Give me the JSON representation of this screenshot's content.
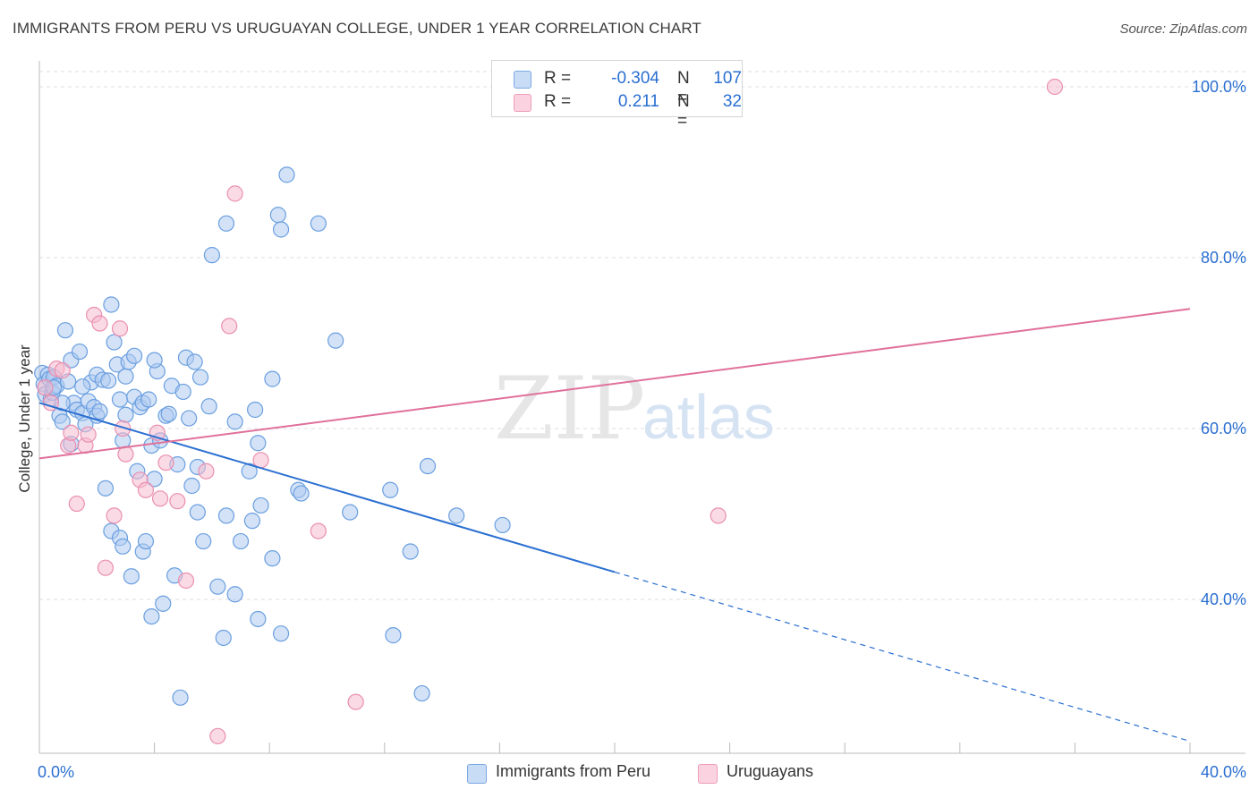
{
  "header": {
    "title": "IMMIGRANTS FROM PERU VS URUGUAYAN COLLEGE, UNDER 1 YEAR CORRELATION CHART",
    "source": "Source: ZipAtlas.com"
  },
  "watermark": {
    "zip": "ZIP",
    "atlas": "atlas"
  },
  "legend_top": {
    "rows": [
      {
        "r_label": "R =",
        "r_value": "-0.304",
        "n_label": "N =",
        "n_value": "107",
        "color": "#aecbf0"
      },
      {
        "r_label": "R =",
        "r_value": "0.211",
        "n_label": "N =",
        "n_value": "32",
        "color": "#f5bcd0"
      }
    ]
  },
  "colors": {
    "blue_fill": "#aecbf0",
    "blue_stroke": "#6a9fe0",
    "blue_line": "#2a6fd1",
    "pink_fill": "#f5bcd0",
    "pink_stroke": "#ea8fb0",
    "pink_line": "#e0709a",
    "tick_label": "#2a6fd1",
    "grid": "#dddddd"
  },
  "chart_data": {
    "type": "scatter",
    "title": "IMMIGRANTS FROM PERU VS URUGUAYAN COLLEGE, UNDER 1 YEAR CORRELATION CHART",
    "xlabel": "",
    "ylabel": "College, Under 1 year",
    "xlim": [
      0,
      40
    ],
    "ylim": [
      20,
      102
    ],
    "x_tick_labels": [
      "0.0%",
      "40.0%"
    ],
    "y_tick_labels": [
      "40.0%",
      "60.0%",
      "80.0%",
      "100.0%"
    ],
    "y_ticks": [
      40,
      60,
      80,
      100
    ],
    "grid": true,
    "legend_position": "top-center",
    "series": [
      {
        "name": "Immigrants from Peru",
        "r": -0.304,
        "n": 107,
        "trend": {
          "x0": 0,
          "y0": 63.0,
          "x1": 20,
          "y1": 43.2,
          "dashed_to_x": 40,
          "dashed_to_y": 23.4
        },
        "points": [
          [
            0.1,
            66.5
          ],
          [
            0.15,
            65.2
          ],
          [
            0.2,
            64.0
          ],
          [
            0.3,
            66.3
          ],
          [
            0.35,
            65.8
          ],
          [
            0.4,
            63.5
          ],
          [
            0.45,
            64.2
          ],
          [
            0.5,
            66.0
          ],
          [
            0.6,
            65.0
          ],
          [
            0.7,
            61.5
          ],
          [
            0.8,
            60.8
          ],
          [
            0.9,
            71.5
          ],
          [
            1.0,
            65.5
          ],
          [
            1.1,
            68.0
          ],
          [
            1.1,
            58.2
          ],
          [
            1.2,
            63.0
          ],
          [
            1.3,
            62.2
          ],
          [
            1.4,
            69.0
          ],
          [
            1.5,
            61.8
          ],
          [
            1.6,
            60.5
          ],
          [
            1.7,
            63.2
          ],
          [
            1.8,
            65.4
          ],
          [
            1.9,
            62.5
          ],
          [
            2.0,
            66.3
          ],
          [
            2.0,
            61.5
          ],
          [
            2.1,
            62.0
          ],
          [
            2.2,
            65.7
          ],
          [
            2.3,
            53.0
          ],
          [
            2.4,
            65.6
          ],
          [
            2.5,
            48.0
          ],
          [
            2.5,
            74.5
          ],
          [
            2.6,
            70.1
          ],
          [
            2.7,
            67.5
          ],
          [
            2.8,
            47.2
          ],
          [
            2.8,
            63.4
          ],
          [
            2.9,
            46.2
          ],
          [
            3.0,
            66.1
          ],
          [
            3.0,
            61.6
          ],
          [
            3.1,
            67.8
          ],
          [
            3.2,
            42.7
          ],
          [
            3.3,
            63.7
          ],
          [
            3.3,
            68.5
          ],
          [
            3.4,
            55.0
          ],
          [
            3.5,
            62.5
          ],
          [
            3.6,
            45.6
          ],
          [
            3.6,
            63.0
          ],
          [
            3.7,
            46.8
          ],
          [
            3.8,
            63.4
          ],
          [
            3.9,
            38.0
          ],
          [
            3.9,
            58.0
          ],
          [
            4.0,
            54.1
          ],
          [
            4.1,
            66.7
          ],
          [
            4.2,
            58.6
          ],
          [
            4.3,
            39.5
          ],
          [
            4.4,
            61.5
          ],
          [
            4.5,
            61.7
          ],
          [
            4.6,
            65.0
          ],
          [
            4.7,
            42.8
          ],
          [
            4.8,
            55.8
          ],
          [
            4.9,
            28.5
          ],
          [
            5.0,
            64.3
          ],
          [
            5.1,
            68.3
          ],
          [
            5.2,
            61.2
          ],
          [
            5.3,
            53.3
          ],
          [
            5.4,
            67.8
          ],
          [
            5.5,
            55.5
          ],
          [
            5.5,
            50.2
          ],
          [
            5.6,
            66.0
          ],
          [
            5.7,
            46.8
          ],
          [
            5.9,
            62.6
          ],
          [
            6.0,
            80.3
          ],
          [
            6.2,
            41.5
          ],
          [
            6.4,
            35.5
          ],
          [
            6.5,
            84.0
          ],
          [
            6.5,
            49.8
          ],
          [
            6.8,
            60.8
          ],
          [
            6.8,
            40.6
          ],
          [
            7.0,
            46.8
          ],
          [
            7.3,
            55.0
          ],
          [
            7.4,
            49.2
          ],
          [
            7.5,
            62.2
          ],
          [
            7.6,
            58.3
          ],
          [
            7.6,
            37.7
          ],
          [
            7.7,
            51.0
          ],
          [
            8.1,
            44.8
          ],
          [
            8.1,
            65.8
          ],
          [
            8.3,
            85.0
          ],
          [
            8.4,
            83.3
          ],
          [
            8.4,
            36.0
          ],
          [
            8.6,
            89.7
          ],
          [
            9.0,
            52.8
          ],
          [
            9.1,
            52.4
          ],
          [
            9.7,
            84.0
          ],
          [
            10.3,
            70.3
          ],
          [
            10.8,
            50.2
          ],
          [
            12.2,
            52.8
          ],
          [
            12.3,
            35.8
          ],
          [
            12.9,
            45.6
          ],
          [
            13.3,
            29.0
          ],
          [
            13.5,
            55.6
          ],
          [
            14.5,
            49.8
          ],
          [
            16.1,
            48.7
          ],
          [
            0.5,
            64.8
          ],
          [
            0.8,
            63.0
          ],
          [
            1.5,
            64.9
          ],
          [
            2.9,
            58.6
          ],
          [
            4.0,
            68.0
          ]
        ]
      },
      {
        "name": "Uruguayans",
        "r": 0.211,
        "n": 32,
        "trend": {
          "x0": 0,
          "y0": 56.5,
          "x1": 40,
          "y1": 74.0
        },
        "points": [
          [
            0.2,
            64.8
          ],
          [
            0.4,
            63.0
          ],
          [
            0.6,
            67.0
          ],
          [
            0.8,
            66.8
          ],
          [
            1.0,
            58.0
          ],
          [
            1.1,
            59.5
          ],
          [
            1.3,
            51.2
          ],
          [
            1.6,
            58.0
          ],
          [
            1.7,
            59.3
          ],
          [
            1.9,
            73.3
          ],
          [
            2.1,
            72.3
          ],
          [
            2.3,
            43.7
          ],
          [
            2.6,
            49.8
          ],
          [
            2.8,
            71.7
          ],
          [
            2.9,
            60.0
          ],
          [
            3.0,
            57.0
          ],
          [
            3.5,
            54.0
          ],
          [
            3.7,
            52.8
          ],
          [
            4.1,
            59.5
          ],
          [
            4.2,
            51.8
          ],
          [
            4.4,
            56.0
          ],
          [
            4.8,
            51.5
          ],
          [
            5.1,
            42.2
          ],
          [
            5.8,
            55.0
          ],
          [
            6.2,
            24.0
          ],
          [
            6.6,
            72.0
          ],
          [
            6.8,
            87.5
          ],
          [
            7.7,
            56.3
          ],
          [
            9.7,
            48.0
          ],
          [
            11.0,
            28.0
          ],
          [
            23.6,
            49.8
          ],
          [
            35.3,
            100.0
          ]
        ]
      }
    ]
  }
}
